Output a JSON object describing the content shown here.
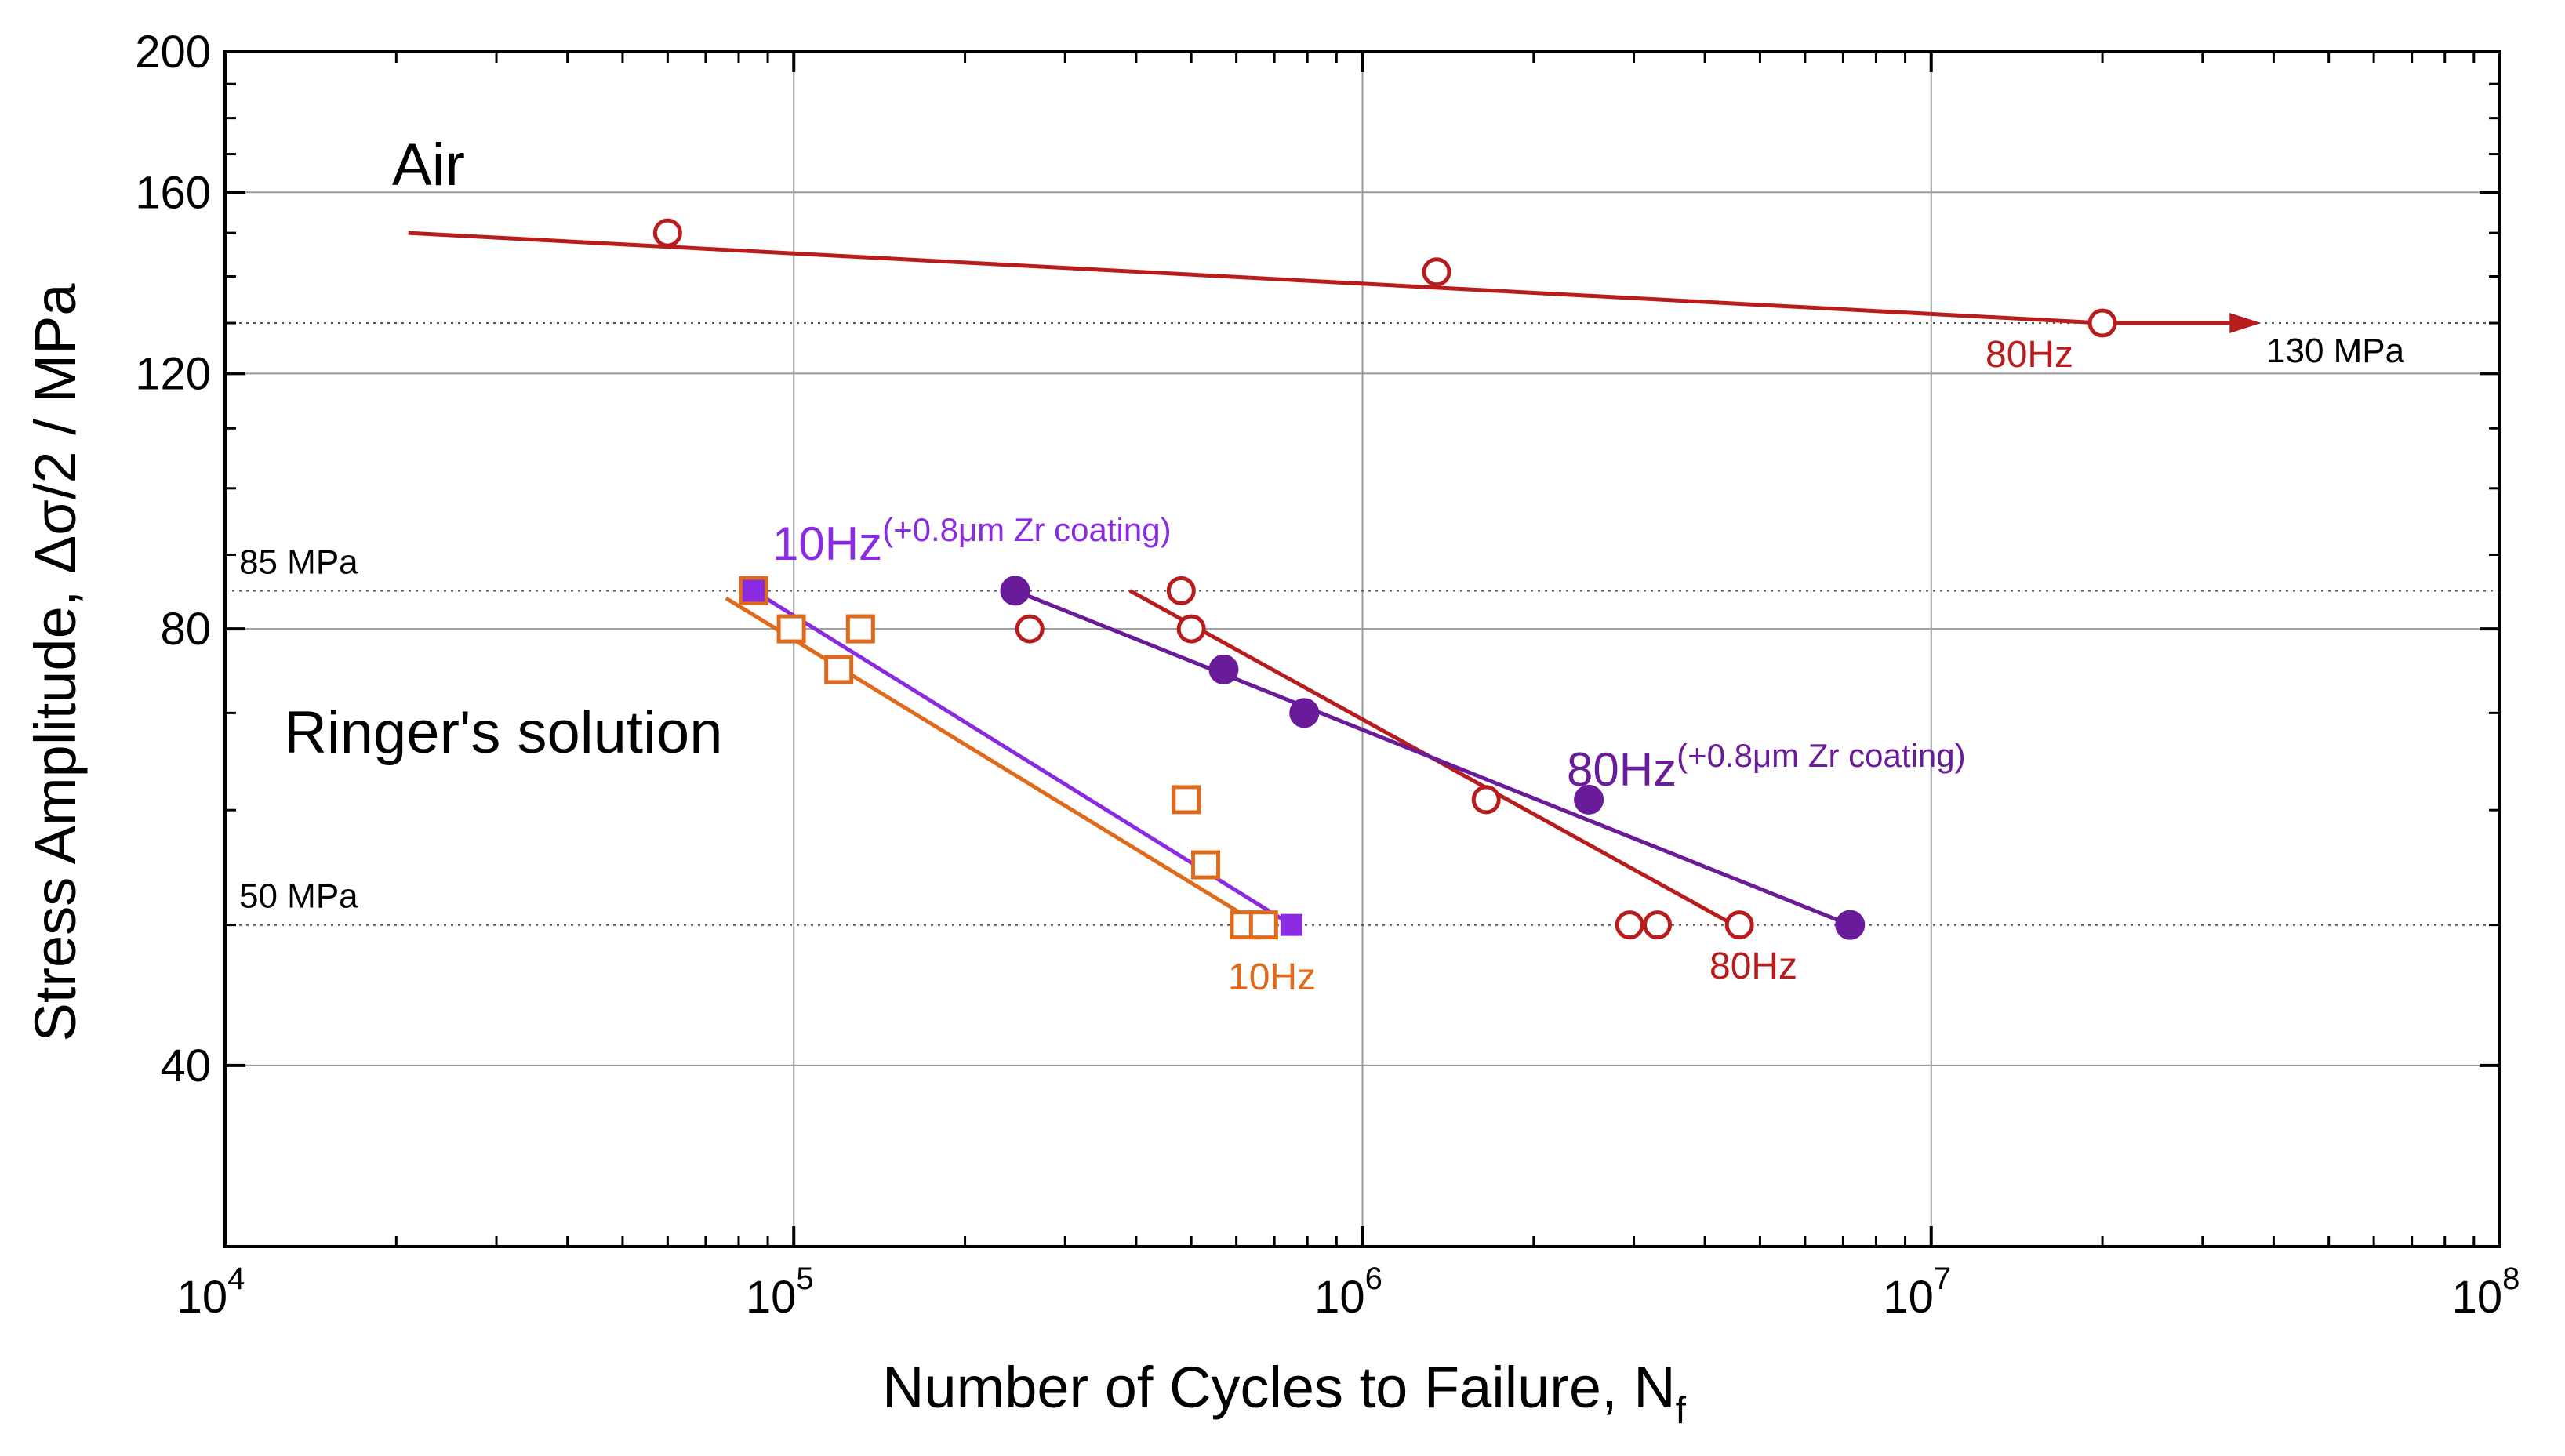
{
  "chart_data": {
    "type": "scatter",
    "title": "",
    "xlabel": "Number of Cycles to Failure, N",
    "xlabel_sub": "f",
    "ylabel": "Stress Amplitude, Δσ/2 / MPa",
    "xscale": "log",
    "yscale": "log",
    "xlim": [
      10000,
      100000000
    ],
    "ylim": [
      30,
      200
    ],
    "x_ticks": [
      {
        "value": 10000,
        "base": "10",
        "exp": "4"
      },
      {
        "value": 100000,
        "base": "10",
        "exp": "5"
      },
      {
        "value": 1000000,
        "base": "10",
        "exp": "6"
      },
      {
        "value": 10000000,
        "base": "10",
        "exp": "7"
      },
      {
        "value": 100000000,
        "base": "10",
        "exp": "8"
      }
    ],
    "y_ticks": [
      {
        "value": 40,
        "label": "40"
      },
      {
        "value": 80,
        "label": "80"
      },
      {
        "value": 120,
        "label": "120"
      },
      {
        "value": 160,
        "label": "160"
      },
      {
        "value": 200,
        "label": "200"
      }
    ],
    "grid": true,
    "reference_lines": [
      {
        "y": 130,
        "label": "130 MPa"
      },
      {
        "y": 85,
        "label": "85 MPa"
      },
      {
        "y": 50,
        "label": "50 MPa"
      }
    ],
    "environments": [
      {
        "label": "Air"
      },
      {
        "label": "Ringer's solution"
      }
    ],
    "series": [
      {
        "name": "Air 80Hz",
        "label": "80Hz",
        "marker": "open-circle",
        "color": "#b81c1c",
        "points": [
          [
            60000,
            150
          ],
          [
            1350000,
            141
          ],
          [
            20000000,
            130
          ]
        ],
        "fit": [
          [
            21000,
            150
          ],
          [
            20000000,
            130
          ]
        ],
        "runout": {
          "from": 20000000,
          "to": 38000000,
          "y": 130
        }
      },
      {
        "name": "Ringer 80Hz",
        "label": "80Hz",
        "marker": "open-circle",
        "color": "#b81c1c",
        "points": [
          [
            480000,
            85
          ],
          [
            500000,
            80
          ],
          [
            260000,
            80
          ],
          [
            1650000,
            61
          ],
          [
            2950000,
            50
          ],
          [
            3300000,
            50
          ],
          [
            4600000,
            50
          ]
        ],
        "fit": [
          [
            390000,
            85
          ],
          [
            4500000,
            50
          ]
        ]
      },
      {
        "name": "Ringer 80Hz (+0.8μm Zr coating)",
        "label": "80Hz",
        "label_sup": "(+0.8μm Zr coating)",
        "marker": "filled-circle",
        "color": "#6a1b9a",
        "points": [
          [
            245000,
            85
          ],
          [
            570000,
            75
          ],
          [
            790000,
            70
          ],
          [
            2500000,
            61
          ],
          [
            7200000,
            50
          ]
        ],
        "fit": [
          [
            245000,
            85
          ],
          [
            7200000,
            50
          ]
        ]
      },
      {
        "name": "Ringer 10Hz",
        "label": "10Hz",
        "marker": "open-square",
        "color": "#e06a1c",
        "points": [
          [
            85000,
            85
          ],
          [
            99000,
            80
          ],
          [
            131000,
            80
          ],
          [
            120000,
            75
          ],
          [
            490000,
            61
          ],
          [
            530000,
            55
          ],
          [
            620000,
            50
          ],
          [
            670000,
            50
          ]
        ],
        "fit": [
          [
            76000,
            84
          ],
          [
            660000,
            50
          ]
        ]
      },
      {
        "name": "Ringer 10Hz (+0.8μm Zr coating)",
        "label": "10Hz",
        "label_sup": "(+0.8μm Zr coating)",
        "marker": "filled-square",
        "color": "#8a2be2",
        "points": [
          [
            85000,
            85
          ],
          [
            750000,
            50
          ]
        ],
        "fit": [
          [
            85000,
            85
          ],
          [
            750000,
            50
          ]
        ]
      }
    ]
  }
}
